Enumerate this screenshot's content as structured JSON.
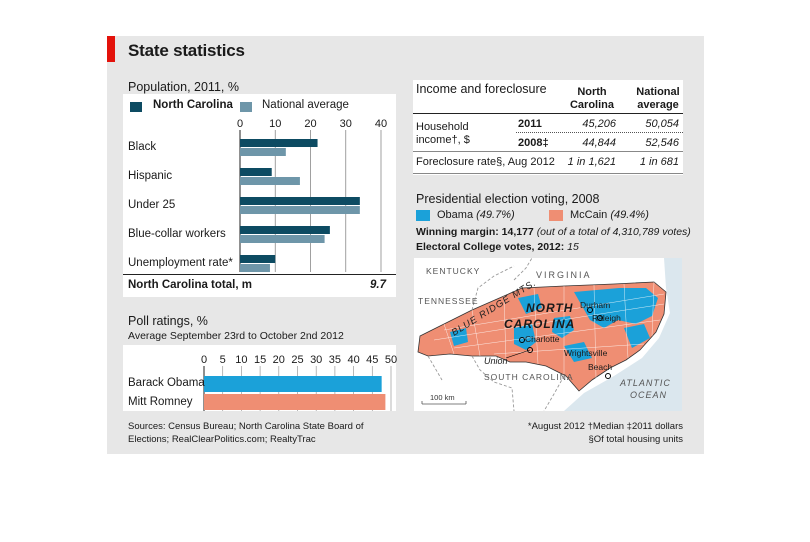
{
  "title": "State statistics",
  "population": {
    "heading": "Population, 2011, %",
    "legend": [
      "North Carolina",
      "National average"
    ],
    "total_label": "North Carolina total, m",
    "total_value": "9.7"
  },
  "polls": {
    "heading": "Poll ratings, %",
    "subheading": "Average September 23rd to October 2nd 2012"
  },
  "income": {
    "heading": "Income and foreclosure",
    "col_nc": "North Carolina",
    "col_nat": "National average",
    "row_income_label": "Household income†, $",
    "year_2011": "2011",
    "year_2008": "2008‡",
    "nc_2011": "45,206",
    "nat_2011": "50,054",
    "nc_2008": "44,844",
    "nat_2008": "52,546",
    "foreclosure_label": "Foreclosure rate§, Aug 2012",
    "nc_foreclosure": "1 in 1,621",
    "nat_foreclosure": "1 in 681"
  },
  "election": {
    "heading": "Presidential election voting, 2008",
    "obama": "Obama",
    "obama_pct": "(49.7%)",
    "mccain": "McCain",
    "mccain_pct": "(49.4%)",
    "margin_label": "Winning margin: 14,177",
    "margin_detail": "(out of a total of 4,310,789 votes)",
    "ec_label": "Electoral College votes, 2012:",
    "ec_value": "15"
  },
  "map": {
    "kentucky": "KENTUCKY",
    "virginia": "VIRGINIA",
    "tennessee": "TENNESSEE",
    "blue_ridge": "BLUE RIDGE MTS.",
    "nc_1": "NORTH",
    "nc_2": "CAROLINA",
    "durham": "Durham",
    "raleigh": "Raleigh",
    "charlotte": "Charlotte",
    "union": "Union",
    "wrightsville": "Wrightsville",
    "beach": "Beach",
    "south_carolina": "SOUTH CAROLINA",
    "atlantic_1": "ATLANTIC",
    "atlantic_2": "OCEAN",
    "scale": "100 km"
  },
  "sources": "Sources: Census Bureau; North Carolina State Board of Elections; RealClearPolitics.com; RealtyTrac",
  "footnote_1": "*August 2012  †Median  ‡2011 dollars",
  "footnote_2": "§Of total housing units",
  "colors": {
    "nc": "#0d4b62",
    "national": "#6e96a9",
    "obama": "#1ba1d9",
    "mccain": "#ef8e73",
    "accent": "#e3120b"
  },
  "chart_data": [
    {
      "type": "bar",
      "orientation": "horizontal",
      "title": "Population, 2011, %",
      "categories": [
        "Black",
        "Hispanic",
        "Under 25",
        "Blue-collar workers",
        "Unemployment rate*"
      ],
      "series": [
        {
          "name": "North Carolina",
          "values": [
            22,
            9,
            34,
            25.5,
            10
          ]
        },
        {
          "name": "National average",
          "values": [
            13,
            17,
            34,
            24,
            8.5
          ]
        }
      ],
      "xlim": [
        0,
        40
      ],
      "ticks": [
        0,
        10,
        20,
        30,
        40
      ],
      "grid": true
    },
    {
      "type": "bar",
      "orientation": "horizontal",
      "title": "Poll ratings, %",
      "categories": [
        "Barack Obama",
        "Mitt Romney"
      ],
      "values": [
        47.5,
        48.5
      ],
      "xlim": [
        0,
        50
      ],
      "ticks": [
        0,
        5,
        10,
        15,
        20,
        25,
        30,
        35,
        40,
        45,
        50
      ],
      "grid": true
    }
  ]
}
